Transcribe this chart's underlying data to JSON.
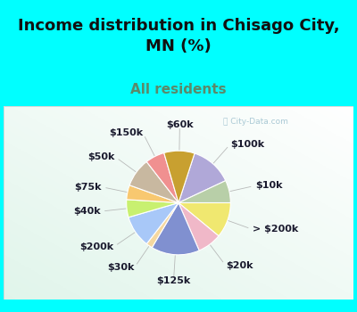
{
  "title": "Income distribution in Chisago City,\nMN (%)",
  "subtitle": "All residents",
  "title_color": "#111111",
  "subtitle_color": "#5a8a6a",
  "bg_top": "#00FFFF",
  "bg_chart": "#e8f5ee",
  "slices": [
    {
      "label": "$100k",
      "value": 13.0,
      "color": "#b0a8d8"
    },
    {
      "label": "$10k",
      "value": 7.0,
      "color": "#b8cfa8"
    },
    {
      "label": "> $200k",
      "value": 11.0,
      "color": "#f0e870"
    },
    {
      "label": "$20k",
      "value": 7.5,
      "color": "#f0b8c8"
    },
    {
      "label": "$125k",
      "value": 15.0,
      "color": "#8090d0"
    },
    {
      "label": "$30k",
      "value": 2.0,
      "color": "#f5d8a0"
    },
    {
      "label": "$200k",
      "value": 10.0,
      "color": "#a8c8f8"
    },
    {
      "label": "$40k",
      "value": 5.5,
      "color": "#c8f070"
    },
    {
      "label": "$75k",
      "value": 4.5,
      "color": "#f8c870"
    },
    {
      "label": "$50k",
      "value": 9.0,
      "color": "#c8b8a0"
    },
    {
      "label": "$150k",
      "value": 6.0,
      "color": "#f09090"
    },
    {
      "label": "$60k",
      "value": 9.5,
      "color": "#c8a030"
    }
  ],
  "title_fontsize": 13,
  "subtitle_fontsize": 11,
  "label_fontsize": 8,
  "watermark": "City-Data.com",
  "watermark_color": "#90b8c8",
  "label_color": "#1a1a2e"
}
